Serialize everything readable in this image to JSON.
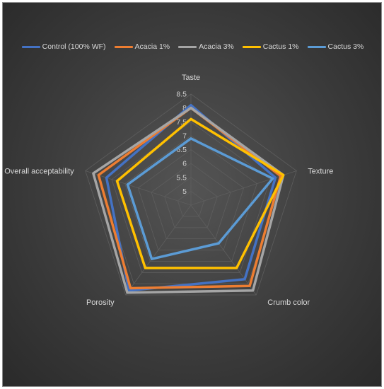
{
  "chart_data": {
    "type": "radar",
    "categories": [
      "Taste",
      "Texture",
      "Crumb color",
      "Porosity",
      "Overall acceptability"
    ],
    "axis_ticks": [
      "5",
      "5.5",
      "6",
      "6.5",
      "7",
      "7.5",
      "8",
      "8.5"
    ],
    "rlim": [
      4.5,
      8.5
    ],
    "grid": true,
    "legend_position": "top",
    "series": [
      {
        "name": "Control (100% WF)",
        "color": "#4472C4",
        "values": [
          8.1,
          7.7,
          7.8,
          8.3,
          7.7
        ]
      },
      {
        "name": "Acacia 1%",
        "color": "#ED7D31",
        "values": [
          8.0,
          7.9,
          8.1,
          8.2,
          8.0
        ]
      },
      {
        "name": "Acacia 3%",
        "color": "#A5A5A5",
        "values": [
          8.0,
          8.0,
          8.3,
          8.4,
          8.2
        ]
      },
      {
        "name": "Cactus 1%",
        "color": "#FFC000",
        "values": [
          7.6,
          8.0,
          7.3,
          7.3,
          7.3
        ]
      },
      {
        "name": "Cactus 3%",
        "color": "#5B9BD5",
        "values": [
          6.9,
          7.6,
          6.2,
          6.9,
          6.9
        ]
      }
    ]
  }
}
